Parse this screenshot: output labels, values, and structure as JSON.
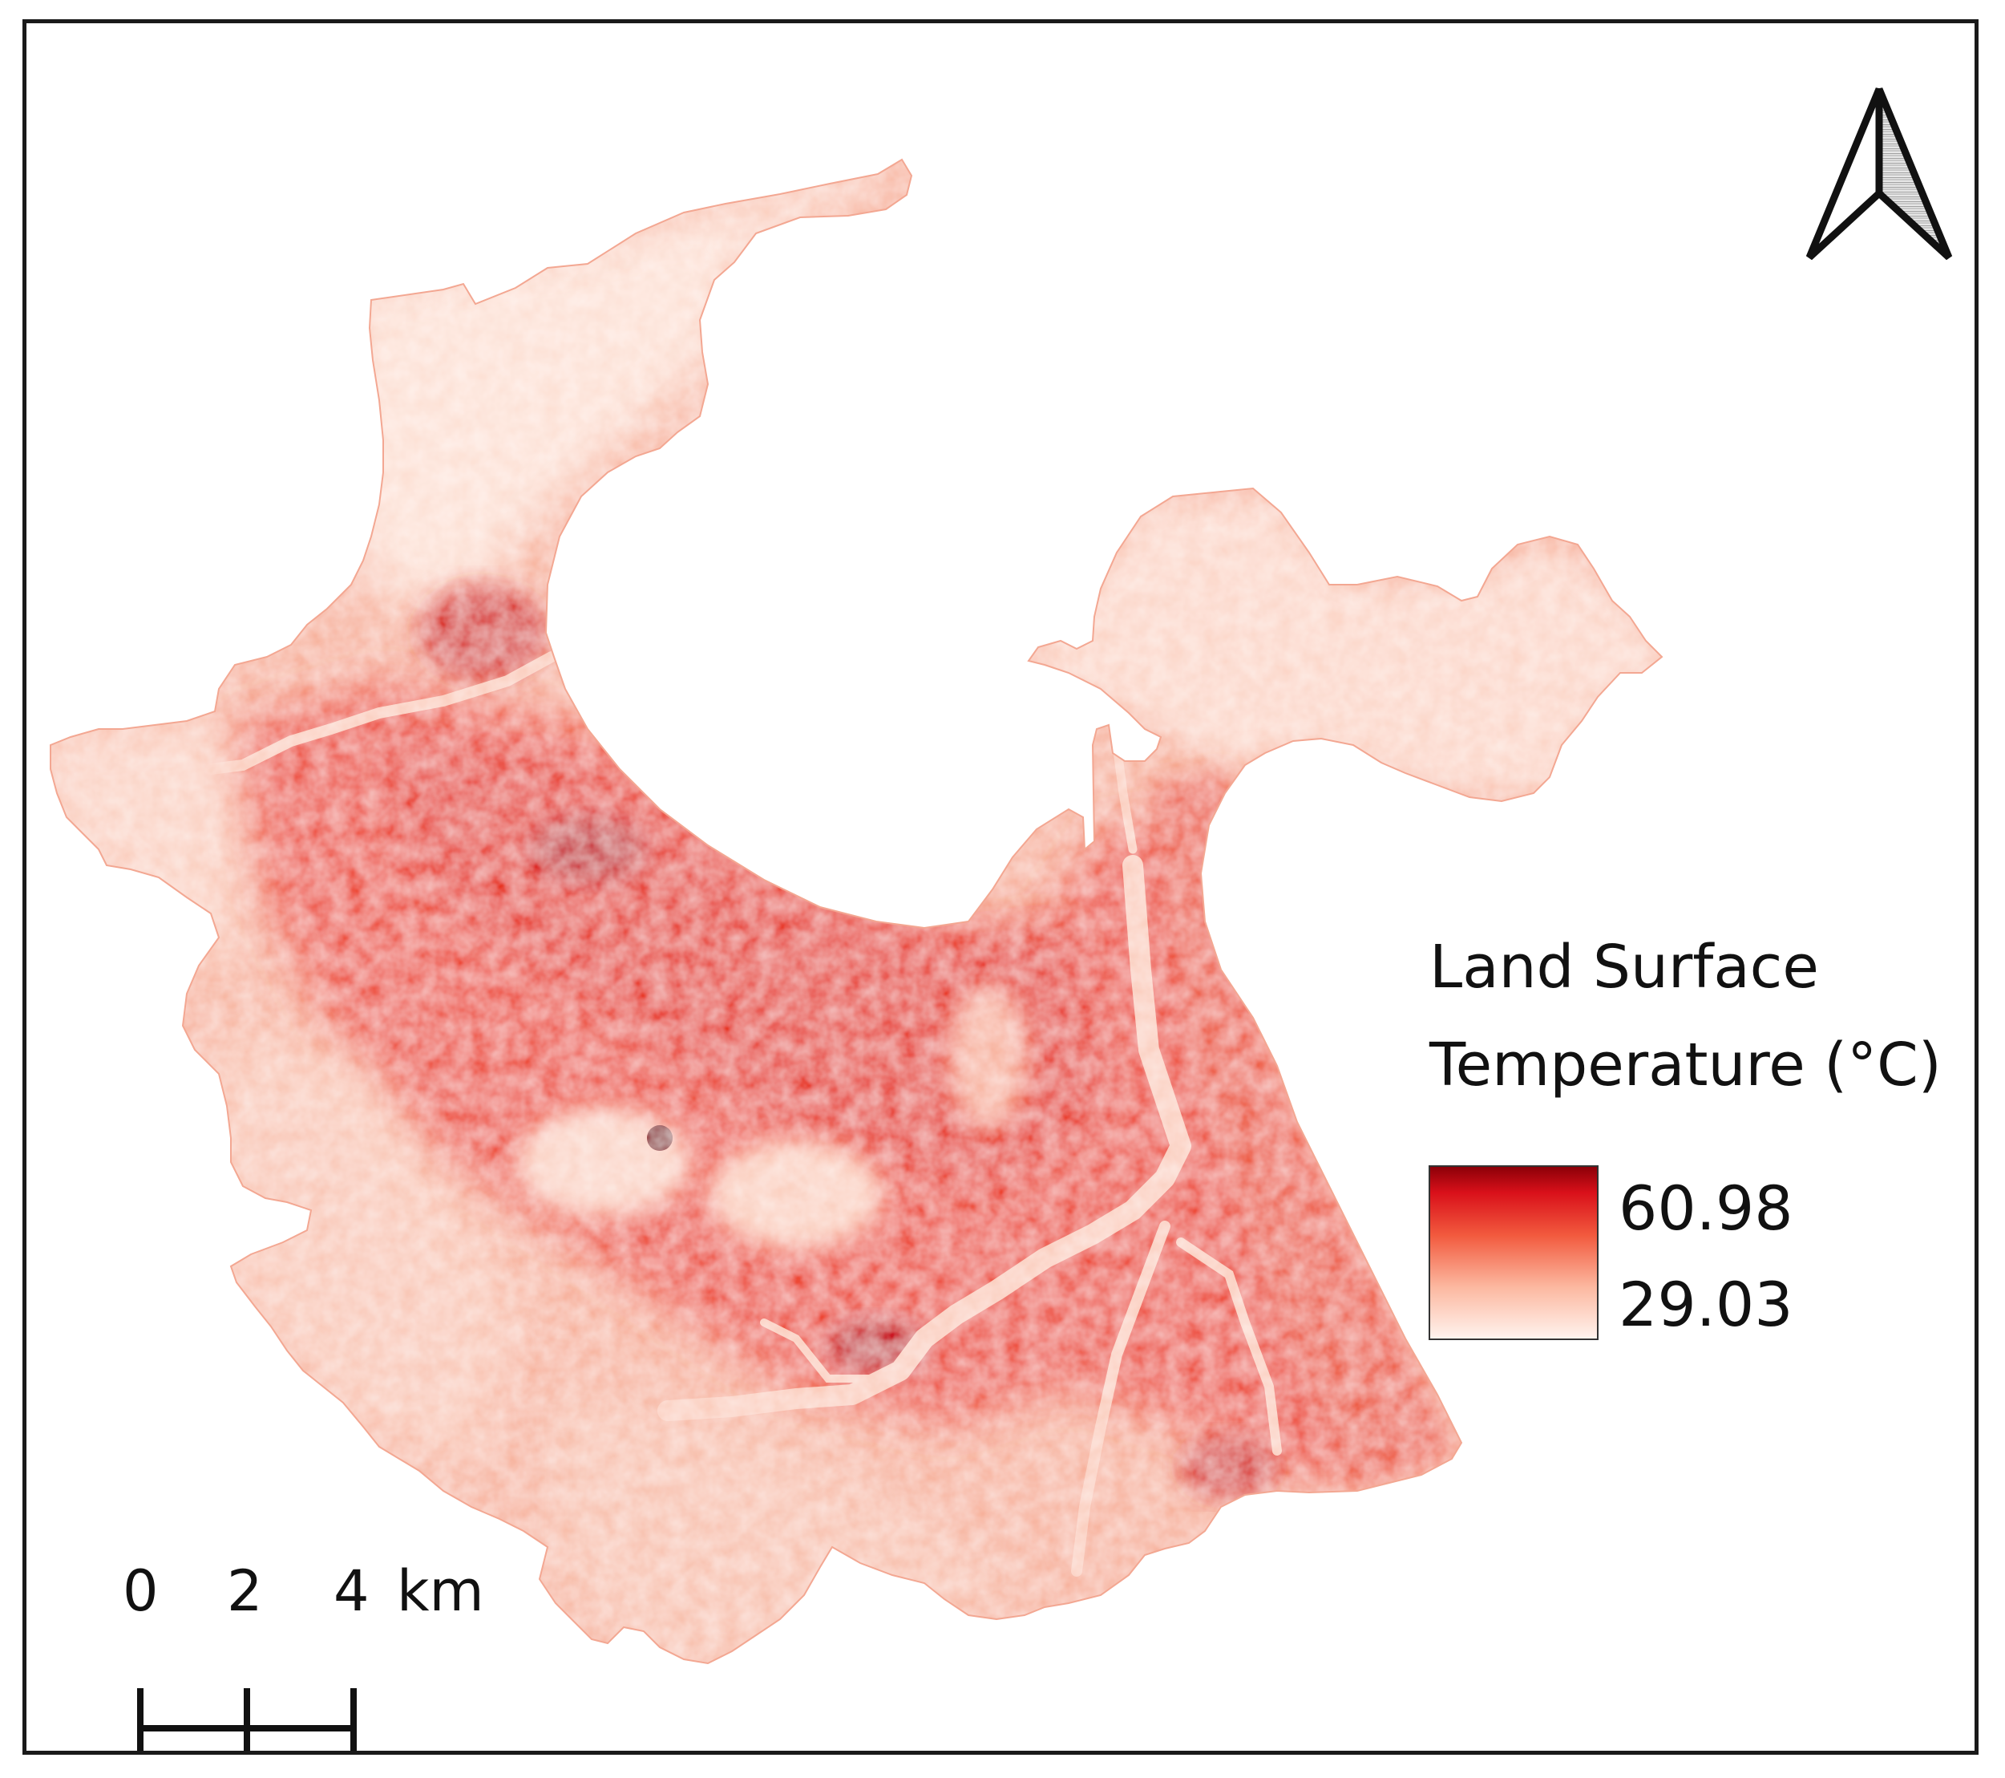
{
  "legend": {
    "title_line1": "Land Surface",
    "title_line2": "Temperature (°C)",
    "max_value": "60.98",
    "min_value": "29.03",
    "ramp_colors": [
      "#fff3ee",
      "#fcb8a0",
      "#f25a3e",
      "#d9101a",
      "#8c0008"
    ]
  },
  "scale_bar": {
    "labels": [
      "0",
      "2",
      "4"
    ],
    "unit": "km"
  },
  "north_arrow": {
    "icon": "north-arrow-icon"
  },
  "map_colors": {
    "coolest": "#fde6dc",
    "mild": "#f9b9a4",
    "warm": "#f27a62",
    "hot": "#ee4a35",
    "hottest": "#c8101a"
  }
}
